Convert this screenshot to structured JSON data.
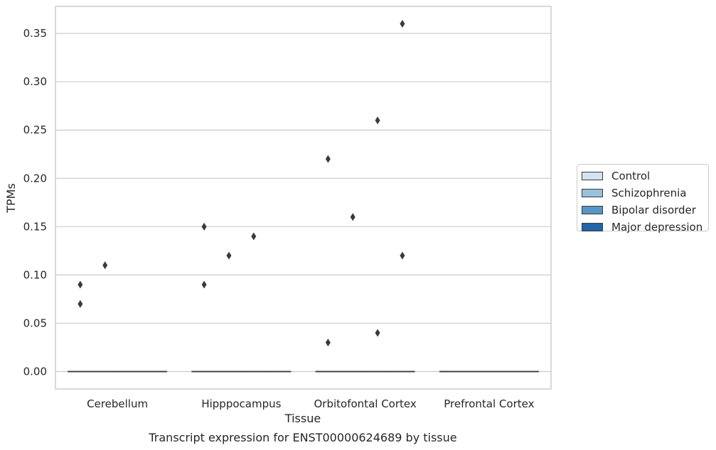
{
  "chart_data": {
    "type": "box",
    "title": "",
    "caption": "Transcript expression for ENST00000624689 by tissue",
    "xlabel": "Tissue",
    "ylabel": "TPMs",
    "ylim": [
      -0.018,
      0.378
    ],
    "yticks": [
      0.0,
      0.05,
      0.1,
      0.15,
      0.2,
      0.25,
      0.3,
      0.35
    ],
    "ytick_labels": [
      "0.00",
      "0.05",
      "0.10",
      "0.15",
      "0.20",
      "0.25",
      "0.30",
      "0.35"
    ],
    "grid": "horizontal",
    "legend_position": "right",
    "categories": [
      "Cerebellum",
      "Hipppocampus",
      "Orbitofontal Cortex",
      "Prefrontal Cortex"
    ],
    "series": [
      {
        "name": "Control",
        "color": "#d4e3f1"
      },
      {
        "name": "Schizophrenia",
        "color": "#98c1dd"
      },
      {
        "name": "Bipolar disorder",
        "color": "#5696c6"
      },
      {
        "name": "Major depression",
        "color": "#2165a8"
      }
    ],
    "boxes": [
      {
        "category": "Cerebellum",
        "series": "Control",
        "median": 0,
        "q1": 0,
        "q3": 0,
        "whisker_low": 0,
        "whisker_high": 0,
        "outliers": [
          0.09,
          0.07
        ]
      },
      {
        "category": "Cerebellum",
        "series": "Schizophrenia",
        "median": 0,
        "q1": 0,
        "q3": 0,
        "whisker_low": 0,
        "whisker_high": 0,
        "outliers": [
          0.11
        ]
      },
      {
        "category": "Cerebellum",
        "series": "Bipolar disorder",
        "median": 0,
        "q1": 0,
        "q3": 0,
        "whisker_low": 0,
        "whisker_high": 0,
        "outliers": []
      },
      {
        "category": "Cerebellum",
        "series": "Major depression",
        "median": 0,
        "q1": 0,
        "q3": 0,
        "whisker_low": 0,
        "whisker_high": 0,
        "outliers": []
      },
      {
        "category": "Hipppocampus",
        "series": "Control",
        "median": 0,
        "q1": 0,
        "q3": 0,
        "whisker_low": 0,
        "whisker_high": 0,
        "outliers": [
          0.15,
          0.09
        ]
      },
      {
        "category": "Hipppocampus",
        "series": "Schizophrenia",
        "median": 0,
        "q1": 0,
        "q3": 0,
        "whisker_low": 0,
        "whisker_high": 0,
        "outliers": [
          0.12
        ]
      },
      {
        "category": "Hipppocampus",
        "series": "Bipolar disorder",
        "median": 0,
        "q1": 0,
        "q3": 0,
        "whisker_low": 0,
        "whisker_high": 0,
        "outliers": [
          0.14
        ]
      },
      {
        "category": "Hipppocampus",
        "series": "Major depression",
        "median": 0,
        "q1": 0,
        "q3": 0,
        "whisker_low": 0,
        "whisker_high": 0,
        "outliers": []
      },
      {
        "category": "Orbitofontal Cortex",
        "series": "Control",
        "median": 0,
        "q1": 0,
        "q3": 0,
        "whisker_low": 0,
        "whisker_high": 0,
        "outliers": [
          0.22,
          0.03
        ]
      },
      {
        "category": "Orbitofontal Cortex",
        "series": "Schizophrenia",
        "median": 0,
        "q1": 0,
        "q3": 0,
        "whisker_low": 0,
        "whisker_high": 0,
        "outliers": [
          0.16
        ]
      },
      {
        "category": "Orbitofontal Cortex",
        "series": "Bipolar disorder",
        "median": 0,
        "q1": 0,
        "q3": 0,
        "whisker_low": 0,
        "whisker_high": 0,
        "outliers": [
          0.26,
          0.04
        ]
      },
      {
        "category": "Orbitofontal Cortex",
        "series": "Major depression",
        "median": 0,
        "q1": 0,
        "q3": 0,
        "whisker_low": 0,
        "whisker_high": 0,
        "outliers": [
          0.36,
          0.12
        ]
      },
      {
        "category": "Prefrontal Cortex",
        "series": "Control",
        "median": 0,
        "q1": 0,
        "q3": 0,
        "whisker_low": 0,
        "whisker_high": 0,
        "outliers": []
      },
      {
        "category": "Prefrontal Cortex",
        "series": "Schizophrenia",
        "median": 0,
        "q1": 0,
        "q3": 0,
        "whisker_low": 0,
        "whisker_high": 0,
        "outliers": []
      },
      {
        "category": "Prefrontal Cortex",
        "series": "Bipolar disorder",
        "median": 0,
        "q1": 0,
        "q3": 0,
        "whisker_low": 0,
        "whisker_high": 0,
        "outliers": []
      },
      {
        "category": "Prefrontal Cortex",
        "series": "Major depression",
        "median": 0,
        "q1": 0,
        "q3": 0,
        "whisker_low": 0,
        "whisker_high": 0,
        "outliers": []
      }
    ],
    "colors": {
      "grid": "#cccccc",
      "frame": "#cccccc",
      "marker": "#3a3a3a"
    }
  }
}
